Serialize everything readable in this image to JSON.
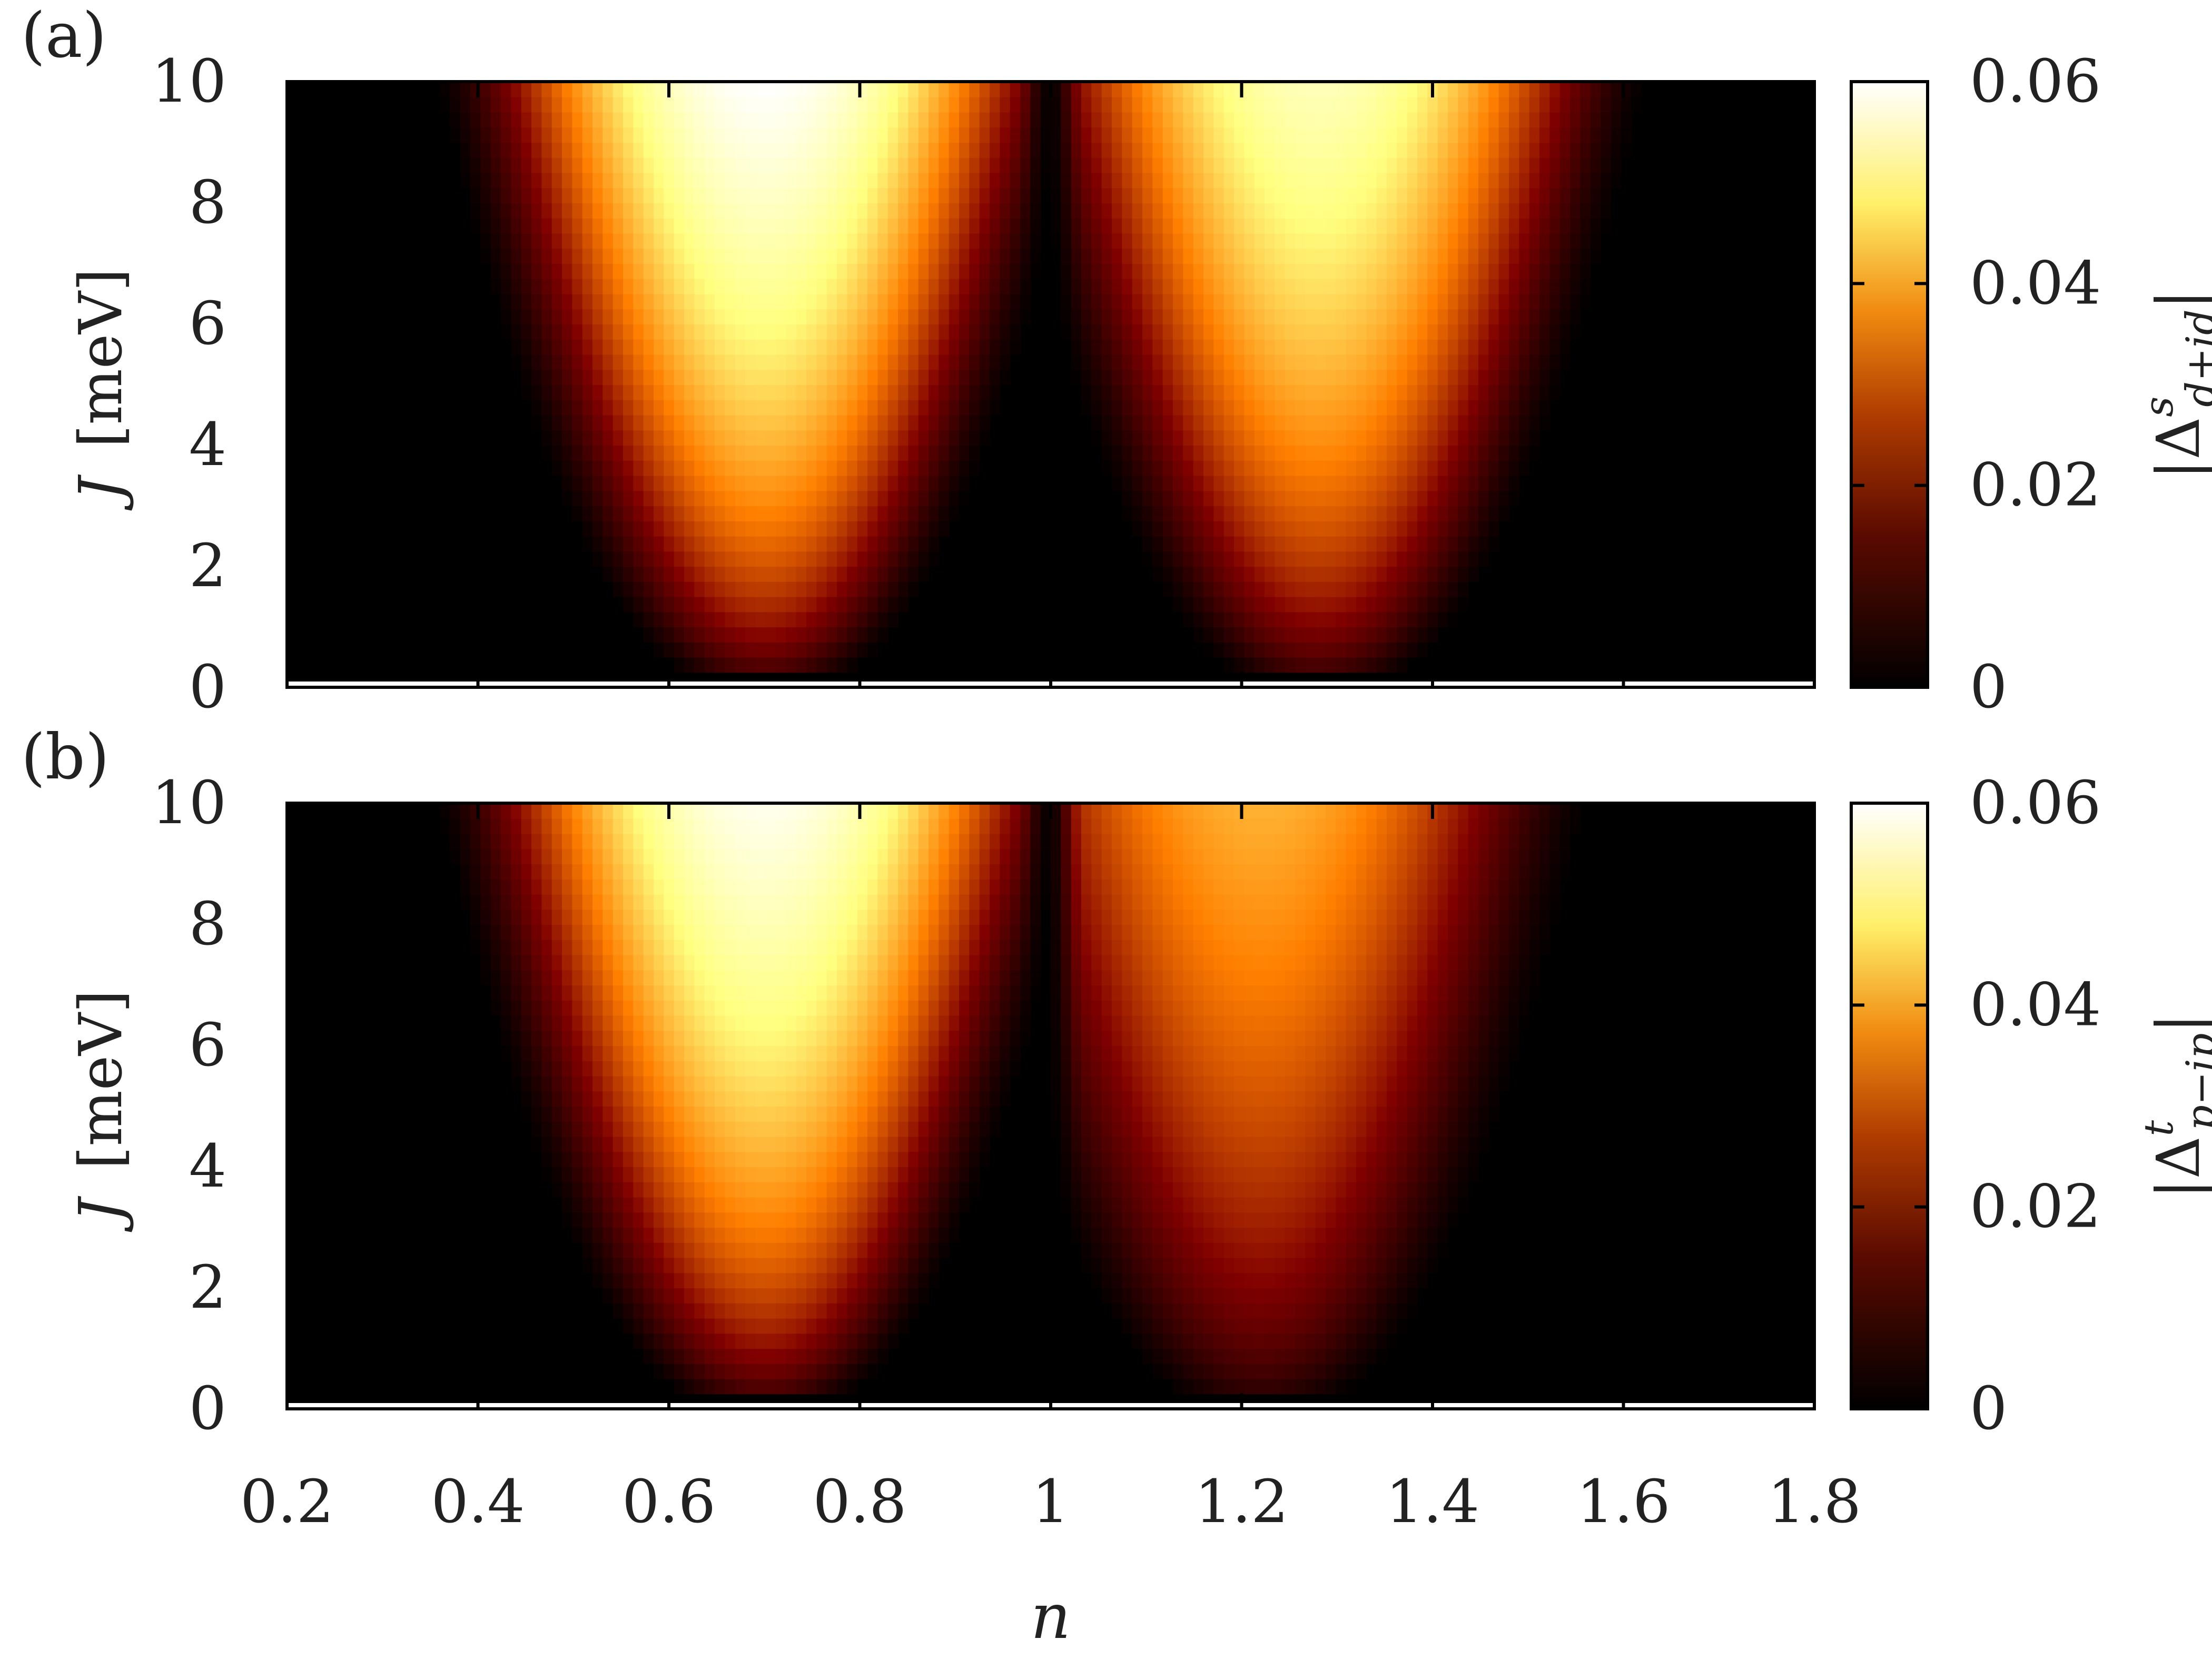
{
  "chart_data": [
    {
      "type": "heatmap",
      "panel_label": "(a)",
      "xlabel": "n",
      "ylabel_var": "J",
      "ylabel_unit": "[meV]",
      "xlim": [
        0.2,
        1.8
      ],
      "ylim": [
        0,
        10
      ],
      "x_ticks": [
        "0.2",
        "0.4",
        "0.6",
        "0.8",
        "1",
        "1.2",
        "1.4",
        "1.6",
        "1.8"
      ],
      "y_ticks": [
        "0",
        "2",
        "4",
        "6",
        "8",
        "10"
      ],
      "colorbar": {
        "label_base": "|Δ",
        "label_sup": "s",
        "label_sub": "d+id",
        "label_close": "|",
        "range": [
          0,
          0.06
        ],
        "ticks": [
          "0",
          "0.02",
          "0.04",
          "0.06"
        ],
        "colormap": "afmhot"
      },
      "model": {
        "description_free": true,
        "lobes": [
          {
            "center_n": 0.7,
            "peak": 0.06,
            "onset_J": 0.2
          },
          {
            "center_n": 1.28,
            "peak": 0.052,
            "onset_J": 0.2
          }
        ]
      },
      "samples": {
        "x": [
          0.3,
          0.5,
          0.7,
          0.9,
          0.99,
          1.1,
          1.3,
          1.5,
          1.7
        ],
        "rows": [
          {
            "J": 10,
            "values": [
              0.0,
              0.02,
              0.06,
              0.035,
              0.0,
              0.04,
              0.05,
              0.015,
              0.0
            ]
          },
          {
            "J": 6,
            "values": [
              0.0,
              0.025,
              0.05,
              0.04,
              0.0,
              0.035,
              0.035,
              0.005,
              0.0
            ]
          },
          {
            "J": 2,
            "values": [
              0.0,
              0.0,
              0.01,
              0.03,
              0.0,
              0.02,
              0.003,
              0.0,
              0.0
            ]
          }
        ]
      }
    },
    {
      "type": "heatmap",
      "panel_label": "(b)",
      "xlabel": "n",
      "ylabel_var": "J",
      "ylabel_unit": "[meV]",
      "xlim": [
        0.2,
        1.8
      ],
      "ylim": [
        0,
        10
      ],
      "x_ticks": [
        "0.2",
        "0.4",
        "0.6",
        "0.8",
        "1",
        "1.2",
        "1.4",
        "1.6",
        "1.8"
      ],
      "y_ticks": [
        "0",
        "2",
        "4",
        "6",
        "8",
        "10"
      ],
      "colorbar": {
        "label_base": "|Δ",
        "label_sup": "t",
        "label_sub": "p−ip",
        "label_close": "|",
        "range": [
          0,
          0.06
        ],
        "ticks": [
          "0",
          "0.02",
          "0.04",
          "0.06"
        ],
        "colormap": "afmhot"
      },
      "model": {
        "lobes": [
          {
            "center_n": 0.7,
            "peak": 0.058,
            "onset_J": 0.2
          },
          {
            "center_n": 1.22,
            "peak": 0.036,
            "onset_J": 0.2
          }
        ]
      },
      "samples": {
        "x": [
          0.3,
          0.5,
          0.7,
          0.9,
          0.99,
          1.1,
          1.3,
          1.5,
          1.7
        ],
        "rows": [
          {
            "J": 10,
            "values": [
              0.0,
              0.02,
              0.058,
              0.035,
              0.0,
              0.03,
              0.035,
              0.01,
              0.0
            ]
          },
          {
            "J": 6,
            "values": [
              0.0,
              0.025,
              0.048,
              0.035,
              0.0,
              0.03,
              0.025,
              0.003,
              0.0
            ]
          },
          {
            "J": 2,
            "values": [
              0.0,
              0.0,
              0.01,
              0.028,
              0.0,
              0.018,
              0.002,
              0.0,
              0.0
            ]
          }
        ]
      }
    }
  ]
}
